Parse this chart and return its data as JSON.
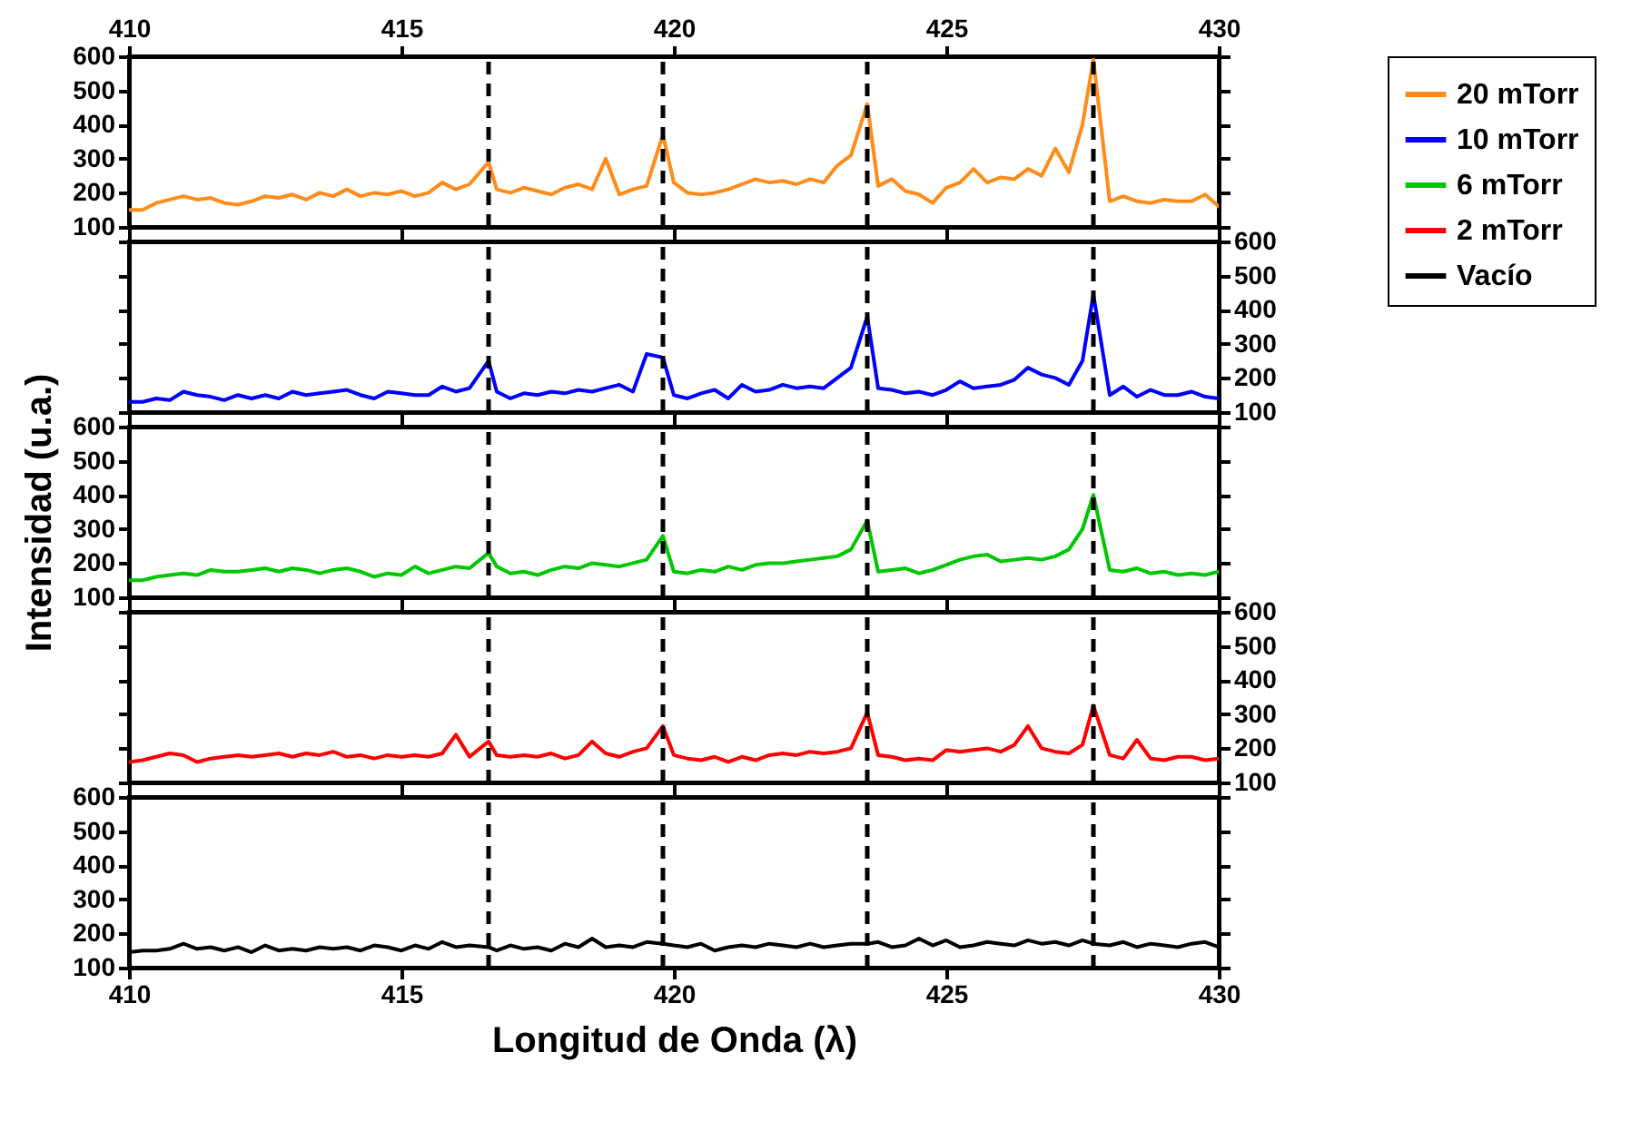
{
  "chart_data": [
    {
      "type": "line",
      "x": [
        410,
        410.25,
        410.5,
        410.75,
        411,
        411.25,
        411.5,
        411.75,
        412,
        412.25,
        412.5,
        412.75,
        413,
        413.25,
        413.5,
        413.75,
        414,
        414.25,
        414.5,
        414.75,
        415,
        415.25,
        415.5,
        415.75,
        416,
        416.25,
        416.6,
        416.75,
        417,
        417.25,
        417.5,
        417.75,
        418,
        418.25,
        418.5,
        418.75,
        419,
        419.25,
        419.5,
        419.8,
        420,
        420.25,
        420.5,
        420.75,
        421,
        421.25,
        421.5,
        421.75,
        422,
        422.25,
        422.5,
        422.75,
        423,
        423.25,
        423.55,
        423.75,
        424,
        424.25,
        424.5,
        424.75,
        425,
        425.25,
        425.5,
        425.75,
        426,
        426.25,
        426.5,
        426.75,
        427,
        427.25,
        427.5,
        427.7,
        428,
        428.25,
        428.5,
        428.75,
        429,
        429.25,
        429.5,
        429.75,
        430
      ],
      "series": [
        {
          "name": "20 mTorr",
          "color": "#ff8c1a",
          "values": [
            150,
            150,
            170,
            180,
            190,
            180,
            185,
            170,
            165,
            175,
            190,
            185,
            195,
            180,
            200,
            190,
            210,
            190,
            200,
            195,
            205,
            190,
            200,
            230,
            210,
            225,
            290,
            210,
            200,
            215,
            205,
            195,
            215,
            225,
            210,
            300,
            195,
            210,
            220,
            370,
            230,
            200,
            195,
            200,
            210,
            225,
            240,
            230,
            235,
            225,
            240,
            230,
            280,
            310,
            460,
            220,
            240,
            205,
            195,
            170,
            215,
            230,
            270,
            230,
            245,
            240,
            270,
            250,
            330,
            260,
            400,
            590,
            175,
            190,
            175,
            170,
            180,
            175,
            175,
            195,
            160
          ]
        }
      ],
      "xlim": [
        410,
        430
      ],
      "xticks": [
        410,
        415,
        420,
        425,
        430
      ],
      "x2lim": [
        410,
        430
      ],
      "x2ticks": [
        410,
        415,
        420,
        425,
        430
      ],
      "ylim": [
        100,
        600
      ],
      "yticks": [
        100,
        200,
        300,
        400,
        500,
        600
      ],
      "tick_labels": "y",
      "legend": "right",
      "ref_lines": [
        {
          "axis": "x",
          "value": 416.6,
          "line_style": "dashed"
        },
        {
          "axis": "x",
          "value": 419.8,
          "line_style": "dashed"
        },
        {
          "axis": "x",
          "value": 423.55,
          "line_style": "dashed"
        },
        {
          "axis": "x",
          "value": 427.7,
          "line_style": "dashed"
        }
      ]
    },
    {
      "type": "line",
      "x": [
        410,
        410.25,
        410.5,
        410.75,
        411,
        411.25,
        411.5,
        411.75,
        412,
        412.25,
        412.5,
        412.75,
        413,
        413.25,
        413.5,
        413.75,
        414,
        414.25,
        414.5,
        414.75,
        415,
        415.25,
        415.5,
        415.75,
        416,
        416.25,
        416.6,
        416.75,
        417,
        417.25,
        417.5,
        417.75,
        418,
        418.25,
        418.5,
        418.75,
        419,
        419.25,
        419.5,
        419.8,
        420,
        420.25,
        420.5,
        420.75,
        421,
        421.25,
        421.5,
        421.75,
        422,
        422.25,
        422.5,
        422.75,
        423,
        423.25,
        423.55,
        423.75,
        424,
        424.25,
        424.5,
        424.75,
        425,
        425.25,
        425.5,
        425.75,
        426,
        426.25,
        426.5,
        426.75,
        427,
        427.25,
        427.5,
        427.7,
        428,
        428.25,
        428.5,
        428.75,
        429,
        429.25,
        429.5,
        429.75,
        430
      ],
      "series": [
        {
          "name": "10 mTorr",
          "color": "#0000ff",
          "axis": "y2",
          "values": [
            130,
            130,
            140,
            135,
            160,
            150,
            145,
            135,
            150,
            140,
            150,
            140,
            160,
            150,
            155,
            160,
            165,
            150,
            140,
            160,
            155,
            150,
            150,
            175,
            160,
            170,
            250,
            160,
            140,
            155,
            150,
            160,
            155,
            165,
            160,
            170,
            180,
            160,
            270,
            260,
            150,
            140,
            155,
            165,
            140,
            180,
            160,
            165,
            180,
            170,
            175,
            170,
            200,
            230,
            380,
            170,
            165,
            155,
            160,
            150,
            165,
            190,
            170,
            175,
            180,
            195,
            230,
            210,
            200,
            180,
            250,
            445,
            150,
            175,
            145,
            165,
            150,
            150,
            160,
            145,
            140
          ]
        }
      ],
      "xlim": [
        410,
        430
      ],
      "xticks": [
        410,
        415,
        420,
        425,
        430
      ],
      "y2lim": [
        100,
        600
      ],
      "y2ticks": [
        100,
        200,
        300,
        400,
        500,
        600
      ],
      "tick_labels": "y",
      "legend": "right",
      "ref_lines": [
        {
          "axis": "x",
          "value": 416.6,
          "line_style": "dashed"
        },
        {
          "axis": "x",
          "value": 419.8,
          "line_style": "dashed"
        },
        {
          "axis": "x",
          "value": 423.55,
          "line_style": "dashed"
        },
        {
          "axis": "x",
          "value": 427.7,
          "line_style": "dashed"
        }
      ]
    },
    {
      "type": "line",
      "ylabel": "Intensidad (u.a.)",
      "x": [
        410,
        410.25,
        410.5,
        410.75,
        411,
        411.25,
        411.5,
        411.75,
        412,
        412.25,
        412.5,
        412.75,
        413,
        413.25,
        413.5,
        413.75,
        414,
        414.25,
        414.5,
        414.75,
        415,
        415.25,
        415.5,
        415.75,
        416,
        416.25,
        416.6,
        416.75,
        417,
        417.25,
        417.5,
        417.75,
        418,
        418.25,
        418.5,
        418.75,
        419,
        419.25,
        419.5,
        419.8,
        420,
        420.25,
        420.5,
        420.75,
        421,
        421.25,
        421.5,
        421.75,
        422,
        422.25,
        422.5,
        422.75,
        423,
        423.25,
        423.55,
        423.75,
        424,
        424.25,
        424.5,
        424.75,
        425,
        425.25,
        425.5,
        425.75,
        426,
        426.25,
        426.5,
        426.75,
        427,
        427.25,
        427.5,
        427.7,
        428,
        428.25,
        428.5,
        428.75,
        429,
        429.25,
        429.5,
        429.75,
        430
      ],
      "series": [
        {
          "name": "6 mTorr",
          "color": "#00c800",
          "values": [
            150,
            150,
            160,
            165,
            170,
            165,
            180,
            175,
            175,
            180,
            185,
            175,
            185,
            180,
            170,
            180,
            185,
            175,
            160,
            170,
            165,
            190,
            170,
            180,
            190,
            185,
            230,
            190,
            170,
            175,
            165,
            180,
            190,
            185,
            200,
            195,
            190,
            200,
            210,
            280,
            175,
            170,
            180,
            175,
            190,
            180,
            195,
            200,
            200,
            205,
            210,
            215,
            220,
            240,
            325,
            175,
            180,
            185,
            170,
            180,
            195,
            210,
            220,
            225,
            205,
            210,
            215,
            210,
            220,
            240,
            300,
            400,
            180,
            175,
            185,
            170,
            175,
            165,
            170,
            165,
            175
          ]
        }
      ],
      "xlim": [
        410,
        430
      ],
      "xticks": [
        410,
        415,
        420,
        425,
        430
      ],
      "ylim": [
        100,
        600
      ],
      "yticks": [
        100,
        200,
        300,
        400,
        500,
        600
      ],
      "tick_labels": "y",
      "legend": "right",
      "ref_lines": [
        {
          "axis": "x",
          "value": 416.6,
          "line_style": "dashed"
        },
        {
          "axis": "x",
          "value": 419.8,
          "line_style": "dashed"
        },
        {
          "axis": "x",
          "value": 423.55,
          "line_style": "dashed"
        },
        {
          "axis": "x",
          "value": 427.7,
          "line_style": "dashed"
        }
      ]
    },
    {
      "type": "line",
      "x": [
        410,
        410.25,
        410.5,
        410.75,
        411,
        411.25,
        411.5,
        411.75,
        412,
        412.25,
        412.5,
        412.75,
        413,
        413.25,
        413.5,
        413.75,
        414,
        414.25,
        414.5,
        414.75,
        415,
        415.25,
        415.5,
        415.75,
        416,
        416.25,
        416.6,
        416.75,
        417,
        417.25,
        417.5,
        417.75,
        418,
        418.25,
        418.5,
        418.75,
        419,
        419.25,
        419.5,
        419.8,
        420,
        420.25,
        420.5,
        420.75,
        421,
        421.25,
        421.5,
        421.75,
        422,
        422.25,
        422.5,
        422.75,
        423,
        423.25,
        423.55,
        423.75,
        424,
        424.25,
        424.5,
        424.75,
        425,
        425.25,
        425.5,
        425.75,
        426,
        426.25,
        426.5,
        426.75,
        427,
        427.25,
        427.5,
        427.7,
        428,
        428.25,
        428.5,
        428.75,
        429,
        429.25,
        429.5,
        429.75,
        430
      ],
      "series": [
        {
          "name": "2 mTorr",
          "color": "#ff0000",
          "axis": "y2",
          "values": [
            160,
            165,
            175,
            185,
            180,
            160,
            170,
            175,
            180,
            175,
            180,
            185,
            175,
            185,
            180,
            190,
            175,
            180,
            170,
            180,
            175,
            180,
            175,
            185,
            240,
            175,
            220,
            180,
            175,
            180,
            175,
            185,
            170,
            180,
            220,
            185,
            175,
            190,
            200,
            265,
            180,
            170,
            165,
            175,
            160,
            175,
            165,
            180,
            185,
            180,
            190,
            185,
            190,
            200,
            305,
            180,
            175,
            165,
            170,
            165,
            195,
            190,
            195,
            200,
            190,
            210,
            265,
            200,
            190,
            185,
            210,
            325,
            180,
            170,
            225,
            170,
            165,
            175,
            175,
            165,
            170
          ]
        }
      ],
      "xlim": [
        410,
        430
      ],
      "xticks": [
        410,
        415,
        420,
        425,
        430
      ],
      "y2lim": [
        100,
        600
      ],
      "y2ticks": [
        100,
        200,
        300,
        400,
        500,
        600
      ],
      "tick_labels": "y",
      "legend": "right",
      "ref_lines": [
        {
          "axis": "x",
          "value": 416.6,
          "line_style": "dashed"
        },
        {
          "axis": "x",
          "value": 419.8,
          "line_style": "dashed"
        },
        {
          "axis": "x",
          "value": 423.55,
          "line_style": "dashed"
        },
        {
          "axis": "x",
          "value": 427.7,
          "line_style": "dashed"
        }
      ]
    },
    {
      "type": "line",
      "xlabel": "Longitud de Onda (λ)",
      "x": [
        410,
        410.25,
        410.5,
        410.75,
        411,
        411.25,
        411.5,
        411.75,
        412,
        412.25,
        412.5,
        412.75,
        413,
        413.25,
        413.5,
        413.75,
        414,
        414.25,
        414.5,
        414.75,
        415,
        415.25,
        415.5,
        415.75,
        416,
        416.25,
        416.6,
        416.75,
        417,
        417.25,
        417.5,
        417.75,
        418,
        418.25,
        418.5,
        418.75,
        419,
        419.25,
        419.5,
        419.8,
        420,
        420.25,
        420.5,
        420.75,
        421,
        421.25,
        421.5,
        421.75,
        422,
        422.25,
        422.5,
        422.75,
        423,
        423.25,
        423.55,
        423.75,
        424,
        424.25,
        424.5,
        424.75,
        425,
        425.25,
        425.5,
        425.75,
        426,
        426.25,
        426.5,
        426.75,
        427,
        427.25,
        427.5,
        427.7,
        428,
        428.25,
        428.5,
        428.75,
        429,
        429.25,
        429.5,
        429.75,
        430
      ],
      "series": [
        {
          "name": "Vacío",
          "color": "#000000",
          "values": [
            145,
            150,
            150,
            155,
            170,
            155,
            160,
            150,
            160,
            145,
            165,
            150,
            155,
            150,
            160,
            155,
            160,
            150,
            165,
            160,
            150,
            165,
            155,
            175,
            160,
            165,
            160,
            150,
            165,
            155,
            160,
            150,
            170,
            160,
            185,
            160,
            165,
            160,
            175,
            170,
            165,
            160,
            170,
            150,
            160,
            165,
            160,
            170,
            165,
            160,
            170,
            160,
            165,
            170,
            170,
            175,
            160,
            165,
            185,
            165,
            180,
            160,
            165,
            175,
            170,
            165,
            180,
            170,
            175,
            165,
            180,
            170,
            165,
            175,
            160,
            170,
            165,
            160,
            170,
            175,
            160
          ]
        }
      ],
      "xlim": [
        410,
        430
      ],
      "xticks": [
        410,
        415,
        420,
        425,
        430
      ],
      "ylim": [
        100,
        600
      ],
      "yticks": [
        100,
        200,
        300,
        400,
        500,
        600
      ],
      "legend": "right",
      "ref_lines": [
        {
          "axis": "x",
          "value": 416.6,
          "line_style": "dashed"
        },
        {
          "axis": "x",
          "value": 419.8,
          "line_style": "dashed"
        },
        {
          "axis": "x",
          "value": 423.55,
          "line_style": "dashed"
        },
        {
          "axis": "x",
          "value": 427.7,
          "line_style": "dashed"
        }
      ]
    }
  ]
}
